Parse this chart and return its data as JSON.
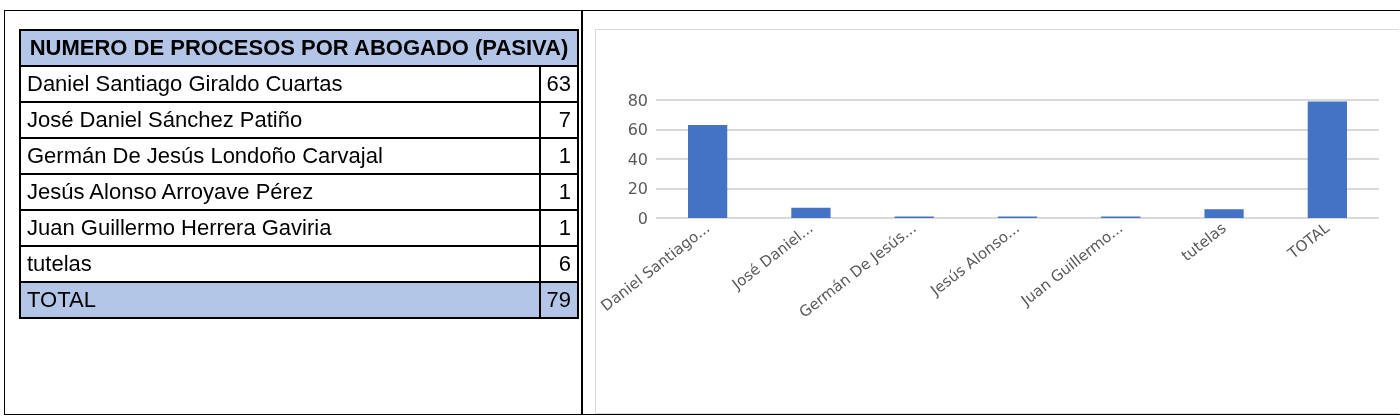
{
  "chart_data": [
    {
      "type": "other",
      "title": "NUMERO DE PROCESOS POR ABOGADO (PASIVA)",
      "categories": [
        "Daniel Santiago Giraldo Cuartas",
        "José Daniel Sánchez Patiño",
        "Germán De Jesús Londoño Carvajal",
        "Jesús Alonso Arroyave Pérez",
        "Juan Guillermo Herrera Gaviria",
        "tutelas",
        "TOTAL"
      ],
      "values": [
        63,
        7,
        1,
        1,
        1,
        6,
        79
      ],
      "data_labels": true
    },
    {
      "type": "bar",
      "categories": [
        "Daniel Santiago...",
        "José Daniel...",
        "Germán De Jesús...",
        "Jesús Alonso...",
        "Juan Guillermo...",
        "tutelas",
        "TOTAL"
      ],
      "values": [
        63,
        7,
        1,
        1,
        1,
        6,
        79
      ],
      "color": "#4472c4",
      "ylim": [
        0,
        80
      ],
      "yticks": [
        0,
        20,
        40,
        60,
        80
      ],
      "grid": "y"
    }
  ]
}
